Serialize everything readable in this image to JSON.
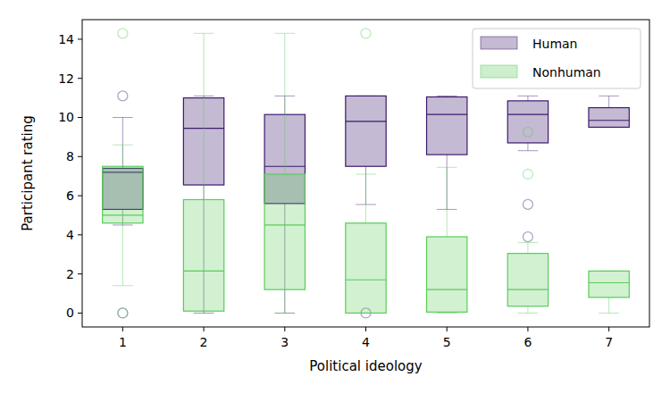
{
  "chart_data": {
    "type": "box",
    "x_label": "Political ideology",
    "y_label": "Participant rating",
    "categories": [
      "1",
      "2",
      "3",
      "4",
      "5",
      "6",
      "7"
    ],
    "ylim": [
      -0.71,
      15.0
    ],
    "yticks": [
      0,
      2,
      4,
      6,
      8,
      10,
      12,
      14
    ],
    "legend": "upper right",
    "grid": false,
    "series": [
      {
        "name": "Human",
        "color": "#3d1a6e",
        "whislo": [
          4.5,
          0,
          0,
          5.55,
          5.3,
          8.3,
          9.5
        ],
        "q1": [
          5.3,
          6.55,
          5.6,
          7.5,
          8.1,
          8.7,
          9.5
        ],
        "med": [
          7.2,
          9.45,
          7.5,
          9.8,
          10.15,
          10.15,
          9.85
        ],
        "q3": [
          7.4,
          11.0,
          10.15,
          11.1,
          11.05,
          10.85,
          10.5
        ],
        "whishi": [
          10.0,
          11.1,
          11.1,
          11.1,
          11.1,
          11.1,
          11.1
        ],
        "fliers": [
          [
            11.1,
            0
          ],
          [],
          [],
          [
            0
          ],
          [],
          [
            5.55,
            3.9
          ],
          []
        ]
      },
      {
        "name": "Nonhuman",
        "color": "#5acb5a",
        "whislo": [
          1.4,
          0,
          0,
          0,
          0,
          0,
          0
        ],
        "q1": [
          4.6,
          0.1,
          1.2,
          0,
          0.05,
          0.35,
          0.8
        ],
        "med": [
          5.0,
          2.15,
          4.5,
          1.7,
          1.2,
          1.2,
          1.55
        ],
        "q3": [
          7.5,
          5.8,
          7.1,
          4.6,
          3.9,
          3.05,
          2.15
        ],
        "whishi": [
          8.6,
          14.3,
          14.3,
          7.1,
          7.45,
          3.6,
          2.15
        ],
        "fliers": [
          [
            14.3,
            0
          ],
          [],
          [],
          [
            14.3
          ],
          [],
          [
            9.25,
            7.1
          ],
          []
        ]
      }
    ]
  }
}
